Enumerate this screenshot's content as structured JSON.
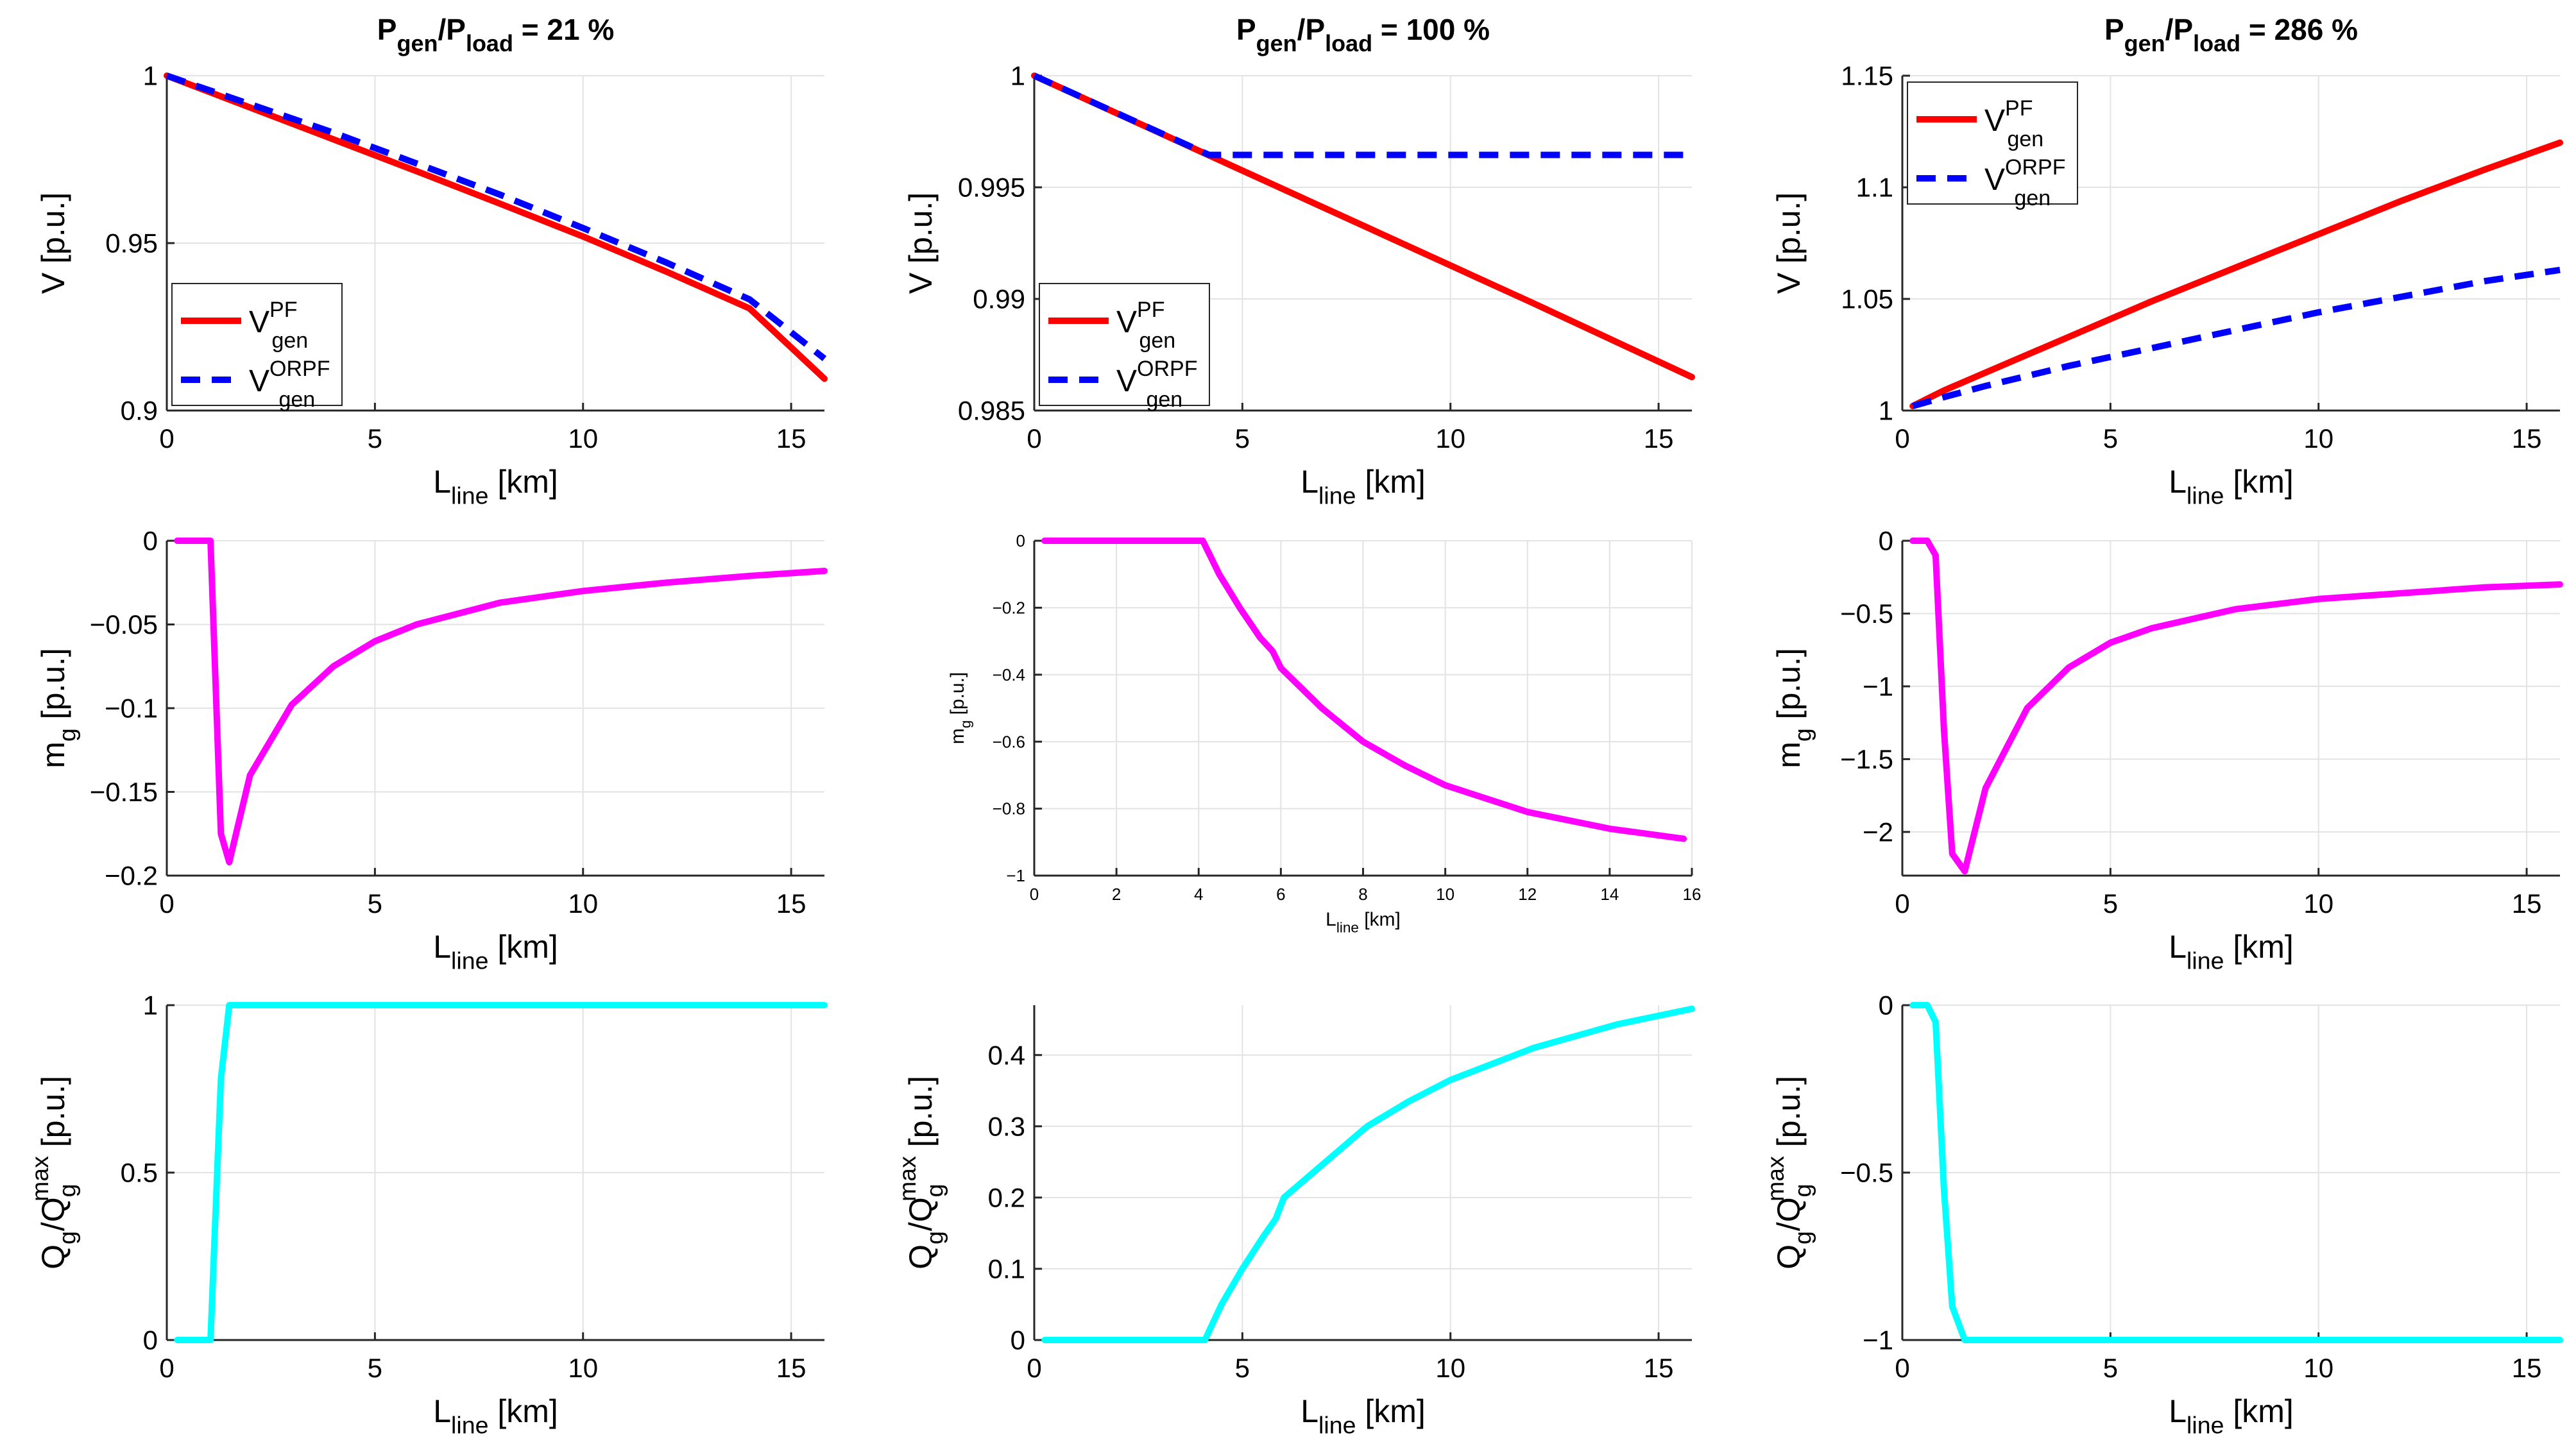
{
  "figure": {
    "background": "#ffffff",
    "grid_color": "#e3e3e3",
    "axis_color": "#262626"
  },
  "columns": [
    {
      "title_main": "P",
      "title_sub1": "gen",
      "title_mid": "/P",
      "title_sub2": "load",
      "title_end": " = 21 %"
    },
    {
      "title_main": "P",
      "title_sub1": "gen",
      "title_mid": "/P",
      "title_sub2": "load",
      "title_end": " = 100 %"
    },
    {
      "title_main": "P",
      "title_sub1": "gen",
      "title_mid": "/P",
      "title_sub2": "load",
      "title_end": " = 286 %"
    }
  ],
  "chart_data": [
    {
      "id": "v-21",
      "type": "line",
      "col": 0,
      "row": 0,
      "xlabel": "L",
      "xlabel_sub": "line",
      "xlabel_unit": " [km]",
      "ylabel": "V [p.u.]",
      "xlim": [
        0,
        15.8
      ],
      "ylim": [
        0.9,
        1
      ],
      "xticks": [
        0,
        5,
        10,
        15
      ],
      "xtick_labels": [
        "0",
        "5",
        "10",
        "15"
      ],
      "yticks": [
        0.9,
        0.95,
        1
      ],
      "ytick_labels": [
        "0.9",
        "0.95",
        "1"
      ],
      "legend": {
        "position": "bottom-left",
        "entries": [
          {
            "base": "V",
            "sup": "PF",
            "sub": "gen"
          },
          {
            "base": "V",
            "sup": "ORPF",
            "sub": "gen"
          }
        ]
      },
      "series": [
        {
          "name": "V_gen^PF",
          "color": "#ff0000",
          "dash": "solid",
          "x": [
            0,
            2,
            4,
            6,
            8,
            10,
            12,
            14,
            15.8
          ],
          "y": [
            1.0,
            0.9905,
            0.981,
            0.9715,
            0.9618,
            0.952,
            0.9415,
            0.9305,
            0.9095
          ]
        },
        {
          "name": "V_gen^ORPF",
          "color": "#0000ff",
          "dash": "dashed",
          "x": [
            0,
            2,
            4,
            6,
            8,
            10,
            12,
            14,
            15.8
          ],
          "y": [
            1.0,
            0.9915,
            0.983,
            0.9738,
            0.9645,
            0.9545,
            0.9442,
            0.9332,
            0.9155
          ]
        }
      ]
    },
    {
      "id": "v-100",
      "type": "line",
      "col": 1,
      "row": 0,
      "xlabel": "L",
      "xlabel_sub": "line",
      "xlabel_unit": " [km]",
      "ylabel": "V [p.u.]",
      "xlim": [
        0,
        15.8
      ],
      "ylim": [
        0.985,
        1
      ],
      "xticks": [
        0,
        5,
        10,
        15
      ],
      "xtick_labels": [
        "0",
        "5",
        "10",
        "15"
      ],
      "yticks": [
        0.985,
        0.99,
        0.995,
        1
      ],
      "ytick_labels": [
        "0.985",
        "0.99",
        "0.995",
        "1"
      ],
      "legend": {
        "position": "bottom-left",
        "entries": [
          {
            "base": "V",
            "sup": "PF",
            "sub": "gen"
          },
          {
            "base": "V",
            "sup": "ORPF",
            "sub": "gen"
          }
        ]
      },
      "series": [
        {
          "name": "V_gen^PF",
          "color": "#ff0000",
          "dash": "solid",
          "x": [
            0,
            4,
            8,
            12,
            15.8
          ],
          "y": [
            1.0,
            0.9966,
            0.9932,
            0.9898,
            0.9865
          ]
        },
        {
          "name": "V_gen^ORPF",
          "color": "#0000ff",
          "dash": "dashed",
          "x": [
            0,
            4.2,
            6,
            8,
            10,
            12,
            14,
            15.8
          ],
          "y": [
            1.0,
            0.99645,
            0.99645,
            0.99645,
            0.99645,
            0.99645,
            0.99645,
            0.99645
          ]
        }
      ]
    },
    {
      "id": "v-286",
      "type": "line",
      "col": 2,
      "row": 0,
      "xlabel": "L",
      "xlabel_sub": "line",
      "xlabel_unit": " [km]",
      "ylabel": "V [p.u.]",
      "xlim": [
        0,
        15.8
      ],
      "ylim": [
        1,
        1.15
      ],
      "xticks": [
        0,
        5,
        10,
        15
      ],
      "xtick_labels": [
        "0",
        "5",
        "10",
        "15"
      ],
      "yticks": [
        1,
        1.05,
        1.1,
        1.15
      ],
      "ytick_labels": [
        "1",
        "1.05",
        "1.1",
        "1.15"
      ],
      "legend": {
        "position": "top-left",
        "entries": [
          {
            "base": "V",
            "sup": "PF",
            "sub": "gen"
          },
          {
            "base": "V",
            "sup": "ORPF",
            "sub": "gen"
          }
        ]
      },
      "series": [
        {
          "name": "V_gen^PF",
          "color": "#ff0000",
          "dash": "solid",
          "x": [
            0.25,
            1,
            2,
            4,
            6,
            8,
            10,
            12,
            14,
            15.8
          ],
          "y": [
            1.002,
            1.009,
            1.017,
            1.033,
            1.049,
            1.064,
            1.079,
            1.094,
            1.108,
            1.12
          ]
        },
        {
          "name": "V_gen^ORPF",
          "color": "#0000ff",
          "dash": "dashed",
          "x": [
            0.25,
            1,
            2,
            4,
            6,
            8,
            10,
            12,
            14,
            15.8
          ],
          "y": [
            1.002,
            1.006,
            1.011,
            1.02,
            1.028,
            1.036,
            1.044,
            1.051,
            1.058,
            1.063
          ]
        }
      ]
    },
    {
      "id": "mg-21",
      "type": "line",
      "col": 0,
      "row": 1,
      "xlabel": "L",
      "xlabel_sub": "line",
      "xlabel_unit": " [km]",
      "ylabel": "m",
      "ylabel_sub": "g",
      "ylabel_unit": " [p.u.]",
      "xlim": [
        0,
        15.8
      ],
      "ylim": [
        -0.2,
        0
      ],
      "xticks": [
        0,
        5,
        10,
        15
      ],
      "xtick_labels": [
        "0",
        "5",
        "10",
        "15"
      ],
      "yticks": [
        -0.2,
        -0.15,
        -0.1,
        -0.05,
        0
      ],
      "ytick_labels": [
        "−0.2",
        "−0.15",
        "−0.1",
        "−0.05",
        "0"
      ],
      "series": [
        {
          "name": "m_g",
          "color": "#ff00ff",
          "dash": "solid",
          "x": [
            0.25,
            1.05,
            1.3,
            1.5,
            2,
            3,
            4,
            5,
            6,
            8,
            10,
            12,
            14,
            15.8
          ],
          "y": [
            0,
            0,
            -0.175,
            -0.192,
            -0.14,
            -0.098,
            -0.075,
            -0.06,
            -0.05,
            -0.037,
            -0.03,
            -0.025,
            -0.021,
            -0.018
          ]
        }
      ]
    },
    {
      "id": "mg-100",
      "type": "line",
      "col": 1,
      "row": 1,
      "xlabel": "L",
      "xlabel_sub": "line",
      "xlabel_unit": " [km]",
      "ylabel": "m",
      "ylabel_sub": "g",
      "ylabel_unit": " [p.u.]",
      "xlim": [
        0,
        16
      ],
      "ylim": [
        -1,
        0
      ],
      "xticks": [
        0,
        2,
        4,
        6,
        8,
        10,
        12,
        14,
        16
      ],
      "xtick_labels": [
        "0",
        "2",
        "4",
        "6",
        "8",
        "10",
        "12",
        "14",
        "16"
      ],
      "yticks": [
        -1,
        -0.8,
        -0.6,
        -0.4,
        -0.2,
        0
      ],
      "ytick_labels": [
        "−1",
        "−0.8",
        "−0.6",
        "−0.4",
        "−0.2",
        "0"
      ],
      "series": [
        {
          "name": "m_g",
          "color": "#ff00ff",
          "dash": "solid",
          "x": [
            0.25,
            4.1,
            4.5,
            5,
            5.5,
            5.8,
            6,
            7,
            8,
            9,
            10,
            12,
            14,
            15.8
          ],
          "y": [
            0,
            0,
            -0.1,
            -0.2,
            -0.29,
            -0.33,
            -0.38,
            -0.5,
            -0.6,
            -0.67,
            -0.73,
            -0.81,
            -0.86,
            -0.89
          ]
        }
      ]
    },
    {
      "id": "mg-286",
      "type": "line",
      "col": 2,
      "row": 1,
      "xlabel": "L",
      "xlabel_sub": "line",
      "xlabel_unit": " [km]",
      "ylabel": "m",
      "ylabel_sub": "g",
      "ylabel_unit": " [p.u.]",
      "xlim": [
        0,
        15.8
      ],
      "ylim": [
        -2.3,
        0
      ],
      "xticks": [
        0,
        5,
        10,
        15
      ],
      "xtick_labels": [
        "0",
        "5",
        "10",
        "15"
      ],
      "yticks": [
        -2,
        -1.5,
        -1,
        -0.5,
        0
      ],
      "ytick_labels": [
        "−2",
        "−1.5",
        "−1",
        "−0.5",
        "0"
      ],
      "series": [
        {
          "name": "m_g",
          "color": "#ff00ff",
          "dash": "solid",
          "x": [
            0.25,
            0.6,
            0.8,
            1.0,
            1.2,
            1.5,
            2,
            3,
            4,
            5,
            6,
            8,
            10,
            12,
            14,
            15.8
          ],
          "y": [
            0,
            0,
            -0.1,
            -1.3,
            -2.15,
            -2.27,
            -1.7,
            -1.15,
            -0.87,
            -0.7,
            -0.6,
            -0.47,
            -0.4,
            -0.36,
            -0.32,
            -0.3
          ]
        }
      ]
    },
    {
      "id": "qg-21",
      "type": "line",
      "col": 0,
      "row": 2,
      "xlabel": "L",
      "xlabel_sub": "line",
      "xlabel_unit": " [km]",
      "ylabel_kind": "q",
      "xlim": [
        0,
        15.8
      ],
      "ylim": [
        0,
        1
      ],
      "xticks": [
        0,
        5,
        10,
        15
      ],
      "xtick_labels": [
        "0",
        "5",
        "10",
        "15"
      ],
      "yticks": [
        0,
        0.5,
        1
      ],
      "ytick_labels": [
        "0",
        "0.5",
        "1"
      ],
      "series": [
        {
          "name": "Q_g/Q_g^max",
          "color": "#00ffff",
          "dash": "solid",
          "x": [
            0.25,
            1.05,
            1.3,
            1.5,
            4,
            8,
            12,
            15.8
          ],
          "y": [
            0,
            0,
            0.78,
            1,
            1,
            1,
            1,
            1
          ]
        }
      ]
    },
    {
      "id": "qg-100",
      "type": "line",
      "col": 1,
      "row": 2,
      "xlabel": "L",
      "xlabel_sub": "line",
      "xlabel_unit": " [km]",
      "ylabel_kind": "q",
      "xlim": [
        0,
        15.8
      ],
      "ylim": [
        0,
        0.47
      ],
      "xticks": [
        0,
        5,
        10,
        15
      ],
      "xtick_labels": [
        "0",
        "5",
        "10",
        "15"
      ],
      "yticks": [
        0,
        0.1,
        0.2,
        0.3,
        0.4
      ],
      "ytick_labels": [
        "0",
        "0.1",
        "0.2",
        "0.3",
        "0.4"
      ],
      "series": [
        {
          "name": "Q_g/Q_g^max",
          "color": "#00ffff",
          "dash": "solid",
          "x": [
            0.25,
            4.1,
            4.5,
            5,
            5.5,
            5.8,
            6,
            7,
            8,
            9,
            10,
            12,
            14,
            15.8
          ],
          "y": [
            0,
            0,
            0.05,
            0.1,
            0.145,
            0.17,
            0.2,
            0.25,
            0.3,
            0.335,
            0.365,
            0.41,
            0.443,
            0.465
          ]
        }
      ]
    },
    {
      "id": "qg-286",
      "type": "line",
      "col": 2,
      "row": 2,
      "xlabel": "L",
      "xlabel_sub": "line",
      "xlabel_unit": " [km]",
      "ylabel_kind": "q",
      "xlim": [
        0,
        15.8
      ],
      "ylim": [
        -1,
        0
      ],
      "xticks": [
        0,
        5,
        10,
        15
      ],
      "xtick_labels": [
        "0",
        "5",
        "10",
        "15"
      ],
      "yticks": [
        -1,
        -0.5,
        0
      ],
      "ytick_labels": [
        "−1",
        "−0.5",
        "0"
      ],
      "series": [
        {
          "name": "Q_g/Q_g^max",
          "color": "#00ffff",
          "dash": "solid",
          "x": [
            0.25,
            0.6,
            0.8,
            1.0,
            1.2,
            1.5,
            4,
            8,
            12,
            15.8
          ],
          "y": [
            0,
            0,
            -0.05,
            -0.55,
            -0.9,
            -1,
            -1,
            -1,
            -1,
            -1
          ]
        }
      ]
    }
  ],
  "q_ylabel": {
    "q": "Q",
    "q_sub": "g",
    "slash_q": "/Q",
    "q_sub2": "g",
    "q_sup": "max",
    "unit": " [p.u.]"
  }
}
